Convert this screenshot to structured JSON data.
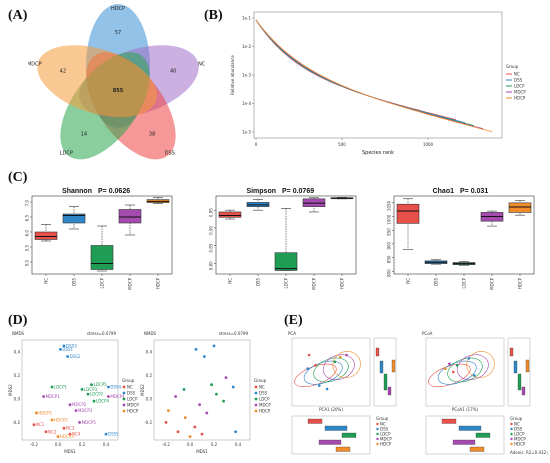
{
  "panel_labels": [
    "(A)",
    "(B)",
    "(C)",
    "(D)",
    "(E)"
  ],
  "colors": {
    "NC": "#e8504a",
    "DSS": "#2f86c9",
    "LDCP": "#1f9d55",
    "MDCP": "#a54bb0",
    "HDCP": "#f08c2a",
    "venn_NC": "#a070c8",
    "venn_HDCP": "#3a8fd6",
    "venn_MDCP": "#f59a3a",
    "venn_LDCP": "#2ca64c",
    "venn_DSS": "#ee4444"
  },
  "chart_data": [
    {
      "type": "venn",
      "panel": "A",
      "sets": [
        "HDCP",
        "NC",
        "DSS",
        "LDCP",
        "MDCP"
      ],
      "set_colors": [
        "#3a8fd6",
        "#a070c8",
        "#ee4444",
        "#2ca64c",
        "#f59a3a"
      ],
      "unique_counts": [
        {
          "set": "HDCP",
          "value": "57"
        },
        {
          "set": "NC",
          "value": "40"
        },
        {
          "set": "DSS",
          "value": "38"
        },
        {
          "set": "LDCP",
          "value": "14"
        },
        {
          "set": "MDCP",
          "value": "42"
        }
      ],
      "core_count": "855"
    },
    {
      "type": "line",
      "panel": "B",
      "xlabel": "Species rank",
      "ylabel": "Relative abundance",
      "x_ticks": [
        "0",
        "500",
        "1000"
      ],
      "y_ticks": [
        "1e-1",
        "1e-2",
        "1e-3",
        "1e-4",
        "1e-5"
      ],
      "y_scale": "log",
      "legend_title": "Group",
      "legend_position": "right",
      "series": [
        {
          "name": "NC",
          "color": "#e8504a"
        },
        {
          "name": "DSS",
          "color": "#2f86c9"
        },
        {
          "name": "LDCP",
          "color": "#1f9d55"
        },
        {
          "name": "MDCP",
          "color": "#a54bb0"
        },
        {
          "name": "HDCP",
          "color": "#f08c2a"
        }
      ]
    },
    {
      "type": "box",
      "panel": "C1",
      "title": "Shannon",
      "pvalue": "P= 0.0626",
      "categories": [
        "NC",
        "DSS",
        "LDCP",
        "MDCP",
        "HDCP"
      ],
      "y_ticks": [
        "5.0",
        "5.5",
        "6.0",
        "6.5",
        "7.0"
      ],
      "ylim": [
        4.6,
        7.2
      ],
      "boxes": [
        {
          "min": 5.7,
          "q1": 5.75,
          "median": 5.85,
          "q3": 6.0,
          "max": 6.25
        },
        {
          "min": 6.1,
          "q1": 6.3,
          "median": 6.55,
          "q3": 6.6,
          "max": 6.85
        },
        {
          "min": 4.7,
          "q1": 4.75,
          "median": 4.95,
          "q3": 5.55,
          "max": 6.2
        },
        {
          "min": 5.9,
          "q1": 6.3,
          "median": 6.5,
          "q3": 6.75,
          "max": 6.9
        },
        {
          "min": 6.95,
          "q1": 6.98,
          "median": 7.02,
          "q3": 7.08,
          "max": 7.15
        }
      ]
    },
    {
      "type": "box",
      "panel": "C2",
      "title": "Simpson",
      "pvalue": "P= 0.0769",
      "categories": [
        "NC",
        "DSS",
        "LDCP",
        "MDCP",
        "HDCP"
      ],
      "y_ticks": [
        "0.80",
        "0.85",
        "0.90",
        "0.95"
      ],
      "ylim": [
        0.77,
        0.99
      ],
      "boxes": [
        {
          "min": 0.925,
          "q1": 0.93,
          "median": 0.935,
          "q3": 0.945,
          "max": 0.95
        },
        {
          "min": 0.95,
          "q1": 0.96,
          "median": 0.965,
          "q3": 0.972,
          "max": 0.98
        },
        {
          "min": 0.78,
          "q1": 0.78,
          "median": 0.785,
          "q3": 0.83,
          "max": 0.955
        },
        {
          "min": 0.945,
          "q1": 0.96,
          "median": 0.97,
          "q3": 0.982,
          "max": 0.985
        },
        {
          "min": 0.982,
          "q1": 0.983,
          "median": 0.984,
          "q3": 0.985,
          "max": 0.986
        }
      ]
    },
    {
      "type": "box",
      "panel": "C3",
      "title": "Chao1",
      "pvalue": "P= 0.031",
      "categories": [
        "NC",
        "DSS",
        "LDCP",
        "MDCP",
        "HDCP"
      ],
      "y_ticks": [
        "800",
        "850",
        "900",
        "950",
        "1000",
        "1050"
      ],
      "ylim": [
        790,
        1075
      ],
      "boxes": [
        {
          "min": 880,
          "q1": 975,
          "median": 1020,
          "q3": 1045,
          "max": 1065
        },
        {
          "min": 826,
          "q1": 828,
          "median": 833,
          "q3": 838,
          "max": 842
        },
        {
          "min": 822,
          "q1": 824,
          "median": 828,
          "q3": 832,
          "max": 835
        },
        {
          "min": 965,
          "q1": 983,
          "median": 1000,
          "q3": 1015,
          "max": 1020
        },
        {
          "min": 1005,
          "q1": 1015,
          "median": 1035,
          "q3": 1050,
          "max": 1058
        }
      ]
    },
    {
      "type": "scatter",
      "panel": "D1",
      "title": "NMDS",
      "stress": "stress=0.0799",
      "xlabel": "MDS1",
      "ylabel": "MDS2",
      "x_ticks": [
        "-0.2",
        "0.0",
        "0.2",
        "0.4"
      ],
      "y_ticks": [
        "0.4",
        "0.2",
        "0.0",
        "-0.2"
      ],
      "legend_title": "Group",
      "legend": [
        "NC",
        "DSS",
        "LDCP",
        "MDCP",
        "HDCP"
      ],
      "points": [
        {
          "x": 0.02,
          "y": 0.42,
          "group": "DSS",
          "label": "DSS1"
        },
        {
          "x": 0.08,
          "y": 0.36,
          "group": "DSS",
          "label": "DSS2"
        },
        {
          "x": 0.05,
          "y": 0.45,
          "group": "DSS",
          "label": "DSS3"
        },
        {
          "x": 0.42,
          "y": 0.1,
          "group": "DSS",
          "label": "DSS4"
        },
        {
          "x": 0.4,
          "y": -0.3,
          "group": "DSS",
          "label": "DSS5"
        },
        {
          "x": -0.05,
          "y": 0.1,
          "group": "LDCP",
          "label": "LDCP1"
        },
        {
          "x": 0.25,
          "y": 0.04,
          "group": "LDCP",
          "label": "LDCP2"
        },
        {
          "x": 0.2,
          "y": 0.08,
          "group": "LDCP",
          "label": "LDCP3"
        },
        {
          "x": 0.3,
          "y": -0.02,
          "group": "LDCP",
          "label": "LDCP4"
        },
        {
          "x": 0.28,
          "y": 0.12,
          "group": "LDCP",
          "label": "LDCP5"
        },
        {
          "x": -0.12,
          "y": 0.02,
          "group": "MDCP",
          "label": "MDCP1"
        },
        {
          "x": 0.1,
          "y": -0.05,
          "group": "MDCP",
          "label": "MDCP2"
        },
        {
          "x": 0.15,
          "y": -0.1,
          "group": "MDCP",
          "label": "MDCP3"
        },
        {
          "x": 0.42,
          "y": 0.02,
          "group": "MDCP",
          "label": "MDCP4"
        },
        {
          "x": 0.18,
          "y": -0.2,
          "group": "MDCP",
          "label": "MDCP5"
        },
        {
          "x": -0.2,
          "y": -0.22,
          "group": "NC",
          "label": "NC1"
        },
        {
          "x": -0.1,
          "y": -0.28,
          "group": "NC",
          "label": "NC2"
        },
        {
          "x": 0.05,
          "y": -0.25,
          "group": "NC",
          "label": "NC3"
        },
        {
          "x": 0.1,
          "y": -0.3,
          "group": "NC",
          "label": "NC4"
        },
        {
          "x": -0.18,
          "y": -0.12,
          "group": "HDCP",
          "label": "HDCP1"
        },
        {
          "x": -0.05,
          "y": -0.18,
          "group": "HDCP",
          "label": "HDCP2"
        },
        {
          "x": 0.0,
          "y": -0.32,
          "group": "HDCP",
          "label": "HDCP3"
        }
      ]
    },
    {
      "type": "scatter",
      "panel": "D2",
      "title": "NMDS",
      "stress": "stress=0.0799",
      "xlabel": "MDS1",
      "ylabel": "MDS2",
      "x_ticks": [
        "-0.2",
        "0.0",
        "0.2",
        "0.4"
      ],
      "y_ticks": [
        "0.4",
        "0.2",
        "0.0",
        "-0.2"
      ],
      "legend_title": "Group",
      "legend": [
        "NC",
        "DSS",
        "LDCP",
        "MDCP",
        "HDCP"
      ],
      "points": [
        {
          "x": 0.05,
          "y": 0.42,
          "group": "DSS"
        },
        {
          "x": 0.12,
          "y": 0.36,
          "group": "DSS"
        },
        {
          "x": 0.2,
          "y": 0.45,
          "group": "DSS"
        },
        {
          "x": 0.36,
          "y": 0.1,
          "group": "DSS"
        },
        {
          "x": 0.38,
          "y": -0.28,
          "group": "DSS"
        },
        {
          "x": -0.05,
          "y": 0.08,
          "group": "LDCP"
        },
        {
          "x": 0.22,
          "y": 0.04,
          "group": "LDCP"
        },
        {
          "x": 0.18,
          "y": 0.12,
          "group": "LDCP"
        },
        {
          "x": 0.28,
          "y": -0.02,
          "group": "LDCP"
        },
        {
          "x": -0.12,
          "y": 0.02,
          "group": "MDCP"
        },
        {
          "x": 0.08,
          "y": -0.05,
          "group": "MDCP"
        },
        {
          "x": 0.14,
          "y": -0.12,
          "group": "MDCP"
        },
        {
          "x": 0.3,
          "y": 0.18,
          "group": "MDCP"
        },
        {
          "x": -0.2,
          "y": -0.2,
          "group": "NC"
        },
        {
          "x": -0.1,
          "y": -0.28,
          "group": "NC"
        },
        {
          "x": 0.04,
          "y": -0.24,
          "group": "NC"
        },
        {
          "x": 0.1,
          "y": -0.3,
          "group": "NC"
        },
        {
          "x": -0.18,
          "y": -0.1,
          "group": "HDCP"
        },
        {
          "x": -0.04,
          "y": -0.16,
          "group": "HDCP"
        },
        {
          "x": 0.0,
          "y": -0.32,
          "group": "HDCP"
        }
      ]
    },
    {
      "type": "scatter",
      "panel": "E1",
      "title": "PCA",
      "xlabel": "PCA1 (20%)",
      "legend_title": "Group",
      "legend": [
        "NC",
        "DSS",
        "LDCP",
        "MDCP",
        "HDCP"
      ],
      "points": [
        {
          "x": 0.2,
          "y": 0.55,
          "group": "DSS"
        },
        {
          "x": 0.35,
          "y": 0.3,
          "group": "DSS"
        },
        {
          "x": 0.45,
          "y": 0.25,
          "group": "DSS"
        },
        {
          "x": 0.55,
          "y": 0.65,
          "group": "LDCP"
        },
        {
          "x": 0.7,
          "y": 0.75,
          "group": "MDCP"
        },
        {
          "x": 0.62,
          "y": 0.72,
          "group": "HDCP"
        },
        {
          "x": 0.3,
          "y": 0.6,
          "group": "NC"
        },
        {
          "x": 0.22,
          "y": 0.75,
          "group": "NC"
        }
      ]
    },
    {
      "type": "scatter",
      "panel": "E2",
      "title": "PCoA",
      "xlabel": "PCoA1 (17%)",
      "legend_title": "Group",
      "legend": [
        "NC",
        "DSS",
        "LDCP",
        "MDCP",
        "HDCP"
      ],
      "annotation": "Adonis: R2=0.432 p=0.001",
      "points": [
        {
          "x": 0.55,
          "y": 0.7,
          "group": "DSS"
        },
        {
          "x": 0.62,
          "y": 0.45,
          "group": "DSS"
        },
        {
          "x": 0.4,
          "y": 0.6,
          "group": "LDCP"
        },
        {
          "x": 0.3,
          "y": 0.62,
          "group": "MDCP"
        },
        {
          "x": 0.25,
          "y": 0.55,
          "group": "HDCP"
        },
        {
          "x": 0.35,
          "y": 0.5,
          "group": "NC"
        }
      ]
    }
  ]
}
